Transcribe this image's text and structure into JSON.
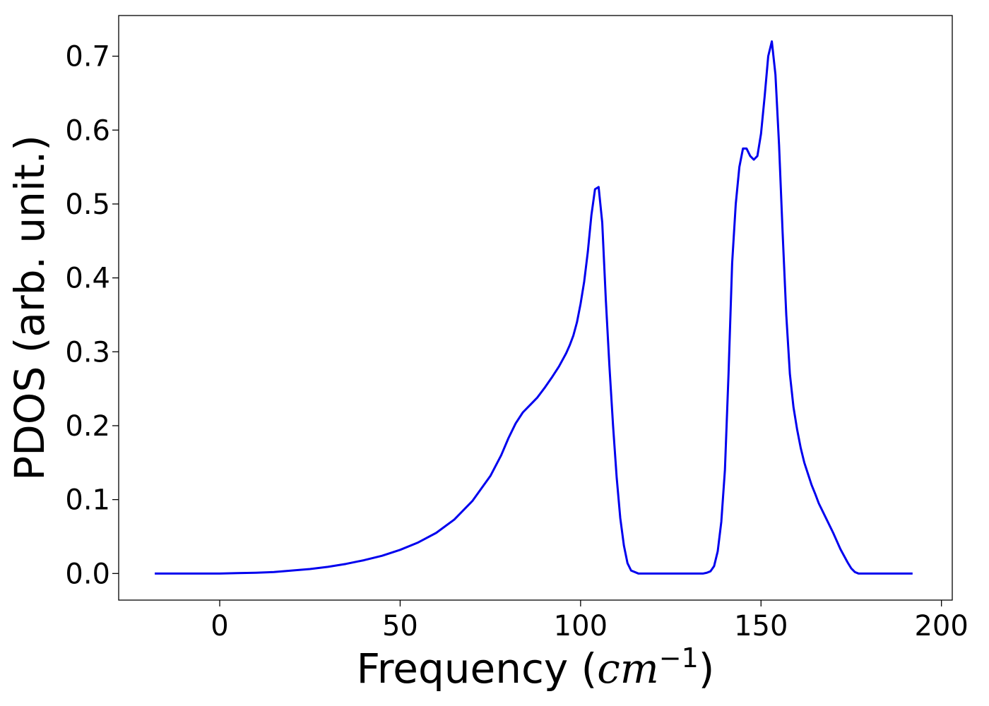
{
  "chart_data": {
    "type": "line",
    "xlabel": "Frequency (cm⁻¹)",
    "xlabel_parts": {
      "prefix": "Frequency (",
      "var": "cm",
      "sup": "−1",
      "suffix": ")"
    },
    "ylabel": "PDOS (arb. unit.)",
    "xlim": [
      -28,
      203
    ],
    "ylim": [
      -0.036,
      0.755
    ],
    "xticks": [
      0,
      50,
      100,
      150,
      200
    ],
    "xtick_labels": [
      "0",
      "50",
      "100",
      "150",
      "200"
    ],
    "yticks": [
      0.0,
      0.1,
      0.2,
      0.3,
      0.4,
      0.5,
      0.6,
      0.7
    ],
    "ytick_labels": [
      "0.0",
      "0.1",
      "0.2",
      "0.3",
      "0.4",
      "0.5",
      "0.6",
      "0.7"
    ],
    "grid": false,
    "legend": "none",
    "series": [
      {
        "color": "#0000ee",
        "x": [
          -18,
          -10,
          0,
          5,
          10,
          15,
          20,
          25,
          30,
          35,
          40,
          45,
          50,
          55,
          60,
          65,
          70,
          75,
          78,
          80,
          82,
          84,
          86,
          88,
          90,
          92,
          94,
          96,
          97,
          98,
          99,
          100,
          101,
          102,
          103,
          104,
          105,
          106,
          107,
          108,
          109,
          110,
          111,
          112,
          113,
          114,
          116,
          120,
          125,
          130,
          134,
          135,
          136,
          137,
          138,
          139,
          140,
          141,
          142,
          143,
          144,
          145,
          146,
          147,
          148,
          149,
          150,
          151,
          152,
          153,
          154,
          155,
          156,
          157,
          158,
          159,
          160,
          161,
          162,
          163,
          164,
          165,
          166,
          168,
          170,
          172,
          174,
          175,
          176,
          177,
          178,
          180,
          185,
          192
        ],
        "y": [
          0.0,
          0.0,
          0.0,
          0.0005,
          0.001,
          0.002,
          0.004,
          0.006,
          0.009,
          0.013,
          0.018,
          0.024,
          0.032,
          0.042,
          0.055,
          0.073,
          0.098,
          0.132,
          0.16,
          0.183,
          0.203,
          0.218,
          0.228,
          0.238,
          0.251,
          0.265,
          0.28,
          0.298,
          0.309,
          0.322,
          0.34,
          0.365,
          0.395,
          0.435,
          0.485,
          0.52,
          0.523,
          0.475,
          0.37,
          0.28,
          0.2,
          0.13,
          0.075,
          0.038,
          0.014,
          0.004,
          0.0,
          0.0,
          0.0,
          0.0,
          0.0,
          0.001,
          0.003,
          0.01,
          0.03,
          0.07,
          0.14,
          0.27,
          0.42,
          0.5,
          0.55,
          0.575,
          0.575,
          0.565,
          0.56,
          0.565,
          0.595,
          0.645,
          0.7,
          0.72,
          0.675,
          0.58,
          0.46,
          0.35,
          0.27,
          0.225,
          0.195,
          0.17,
          0.15,
          0.135,
          0.12,
          0.108,
          0.095,
          0.075,
          0.055,
          0.033,
          0.015,
          0.007,
          0.002,
          0.0,
          0.0,
          0.0,
          0.0,
          0.0
        ]
      }
    ]
  }
}
